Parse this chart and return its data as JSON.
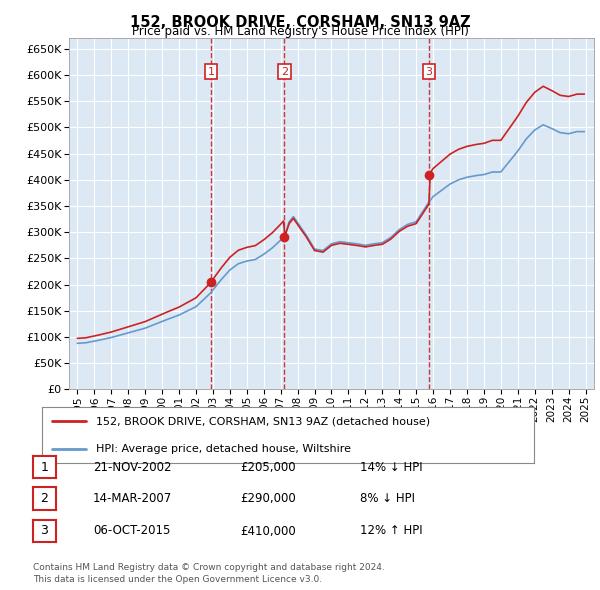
{
  "title": "152, BROOK DRIVE, CORSHAM, SN13 9AZ",
  "subtitle": "Price paid vs. HM Land Registry's House Price Index (HPI)",
  "footer1": "Contains HM Land Registry data © Crown copyright and database right 2024.",
  "footer2": "This data is licensed under the Open Government Licence v3.0.",
  "legend_label1": "152, BROOK DRIVE, CORSHAM, SN13 9AZ (detached house)",
  "legend_label2": "HPI: Average price, detached house, Wiltshire",
  "transaction_labels": [
    "1",
    "2",
    "3"
  ],
  "transaction_dates": [
    "21-NOV-2002",
    "14-MAR-2007",
    "06-OCT-2015"
  ],
  "transaction_prices": [
    "£205,000",
    "£290,000",
    "£410,000"
  ],
  "transaction_hpi": [
    "14% ↓ HPI",
    "8% ↓ HPI",
    "12% ↑ HPI"
  ],
  "sale_dates_num": [
    2002.89,
    2007.21,
    2015.76
  ],
  "sale_prices": [
    205000,
    290000,
    410000
  ],
  "hpi_color": "#6699cc",
  "price_color": "#cc2222",
  "vline_color": "#cc2222",
  "background_color": "#ffffff",
  "chart_bg_color": "#dce9f5",
  "grid_color": "#ffffff",
  "ylim": [
    0,
    670000
  ],
  "ytick_max": 650000,
  "xlim": [
    1994.5,
    2025.5
  ],
  "xticks": [
    1995,
    1996,
    1997,
    1998,
    1999,
    2000,
    2001,
    2002,
    2003,
    2004,
    2005,
    2006,
    2007,
    2008,
    2009,
    2010,
    2011,
    2012,
    2013,
    2014,
    2015,
    2016,
    2017,
    2018,
    2019,
    2020,
    2021,
    2022,
    2023,
    2024,
    2025
  ]
}
